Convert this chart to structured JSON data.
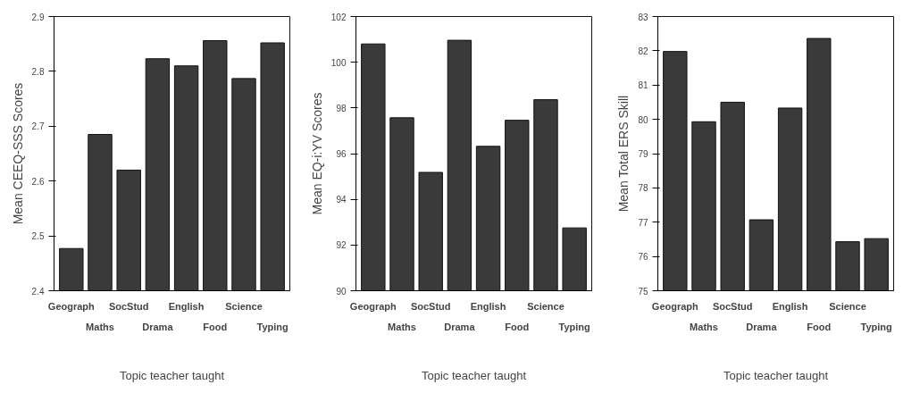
{
  "chart_data": [
    {
      "type": "bar",
      "categories": [
        "Geograph",
        "Maths",
        "SocStud",
        "Drama",
        "English",
        "Food",
        "Science",
        "Typing"
      ],
      "values": [
        2.477,
        2.685,
        2.62,
        2.823,
        2.81,
        2.856,
        2.787,
        2.852
      ],
      "color": "#3a3a3a",
      "ylim": [
        2.4,
        2.9
      ],
      "yticks": [
        2.4,
        2.5,
        2.6,
        2.7,
        2.8,
        2.9
      ],
      "ylabel": "Mean CEEQ-SSS Scores",
      "xlabel": "Topic teacher taught",
      "grid": false
    },
    {
      "type": "bar",
      "categories": [
        "Geograph",
        "Maths",
        "SocStud",
        "Drama",
        "English",
        "Food",
        "Science",
        "Typing"
      ],
      "values": [
        100.8,
        97.57,
        95.18,
        100.96,
        96.32,
        97.46,
        98.36,
        92.75
      ],
      "color": "#3a3a3a",
      "ylim": [
        90,
        102
      ],
      "yticks": [
        90,
        92,
        94,
        96,
        98,
        100,
        102
      ],
      "ylabel": "Mean EQ-i:YV Scores",
      "xlabel": "Topic teacher taught",
      "grid": false
    },
    {
      "type": "bar",
      "categories": [
        "Geograph",
        "Maths",
        "SocStud",
        "Drama",
        "English",
        "Food",
        "Science",
        "Typing"
      ],
      "values": [
        81.98,
        79.93,
        80.5,
        77.07,
        80.33,
        82.36,
        76.43,
        76.52
      ],
      "color": "#3a3a3a",
      "ylim": [
        75,
        83
      ],
      "yticks": [
        75,
        76,
        77,
        78,
        79,
        80,
        81,
        82,
        83
      ],
      "ylabel": "Mean Total ERS Skill",
      "xlabel": "Topic teacher taught",
      "grid": false
    }
  ]
}
